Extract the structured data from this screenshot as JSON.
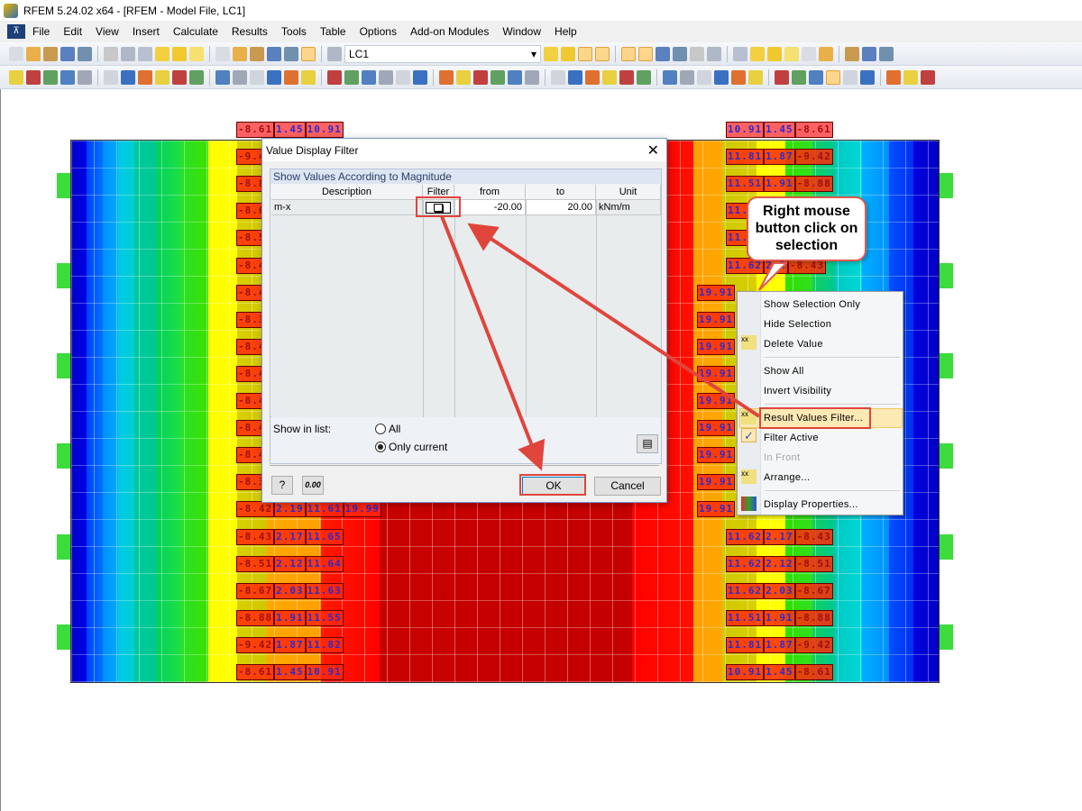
{
  "window": {
    "title": "RFEM 5.24.02 x64 - [RFEM - Model File, LC1]"
  },
  "menu": [
    "File",
    "Edit",
    "View",
    "Insert",
    "Calculate",
    "Results",
    "Tools",
    "Table",
    "Options",
    "Add-on Modules",
    "Window",
    "Help"
  ],
  "toolbar": {
    "load_case": "LC1"
  },
  "labels": {
    "left_top": [
      "-8.61",
      "1.45",
      "10.91"
    ],
    "left_rows": [
      [
        "-9.4"
      ],
      [
        "-8.8"
      ],
      [
        "-8.6"
      ],
      [
        "-8.5"
      ],
      [
        "-8.4"
      ],
      [
        "-8.4"
      ],
      [
        "-8.3"
      ],
      [
        "-8.4"
      ],
      [
        "-8.4"
      ],
      [
        "-8.4"
      ],
      [
        "-8.4"
      ],
      [
        "-8.4"
      ],
      [
        "-8.3"
      ],
      [
        "-8.42",
        "2.19",
        "11.61",
        "19.99"
      ],
      [
        "-8.43",
        "2.17",
        "11.65"
      ],
      [
        "-8.51",
        "2.12",
        "11.64"
      ],
      [
        "-8.67",
        "2.03",
        "11.63"
      ],
      [
        "-8.88",
        "1.91",
        "11.55"
      ],
      [
        "-9.42",
        "1.87",
        "11.82"
      ],
      [
        "-8.61",
        "1.45",
        "10.91"
      ]
    ],
    "right_top": [
      "10.91",
      "1.45",
      "-8.61"
    ],
    "right_rows": [
      [
        "11.81",
        "1.87",
        "-9.42"
      ],
      [
        "11.51",
        "1.91",
        "-8.88"
      ],
      [
        "11.6"
      ],
      [
        "11.6"
      ],
      [
        "11.62",
        "2.1",
        "-8.43"
      ],
      [
        "19.91"
      ],
      [
        "19.91"
      ],
      [
        "19.91"
      ],
      [
        "19.91"
      ],
      [
        "19.91"
      ],
      [
        "19.91"
      ],
      [
        "19.91"
      ],
      [
        "19.91"
      ],
      [
        "19.91"
      ],
      [
        "11.62",
        "2.17",
        "-8.43"
      ],
      [
        "11.62",
        "2.12",
        "-8.51"
      ],
      [
        "11.62",
        "2.03",
        "-8.67"
      ],
      [
        "11.51",
        "1.91",
        "-8.88"
      ],
      [
        "11.81",
        "1.87",
        "-9.42"
      ],
      [
        "10.91",
        "1.45",
        "-8.61"
      ]
    ]
  },
  "dialog": {
    "title": "Value Display Filter",
    "group_title": "Show Values According to Magnitude",
    "columns": [
      "Description",
      "Filter",
      "from",
      "to",
      "Unit"
    ],
    "row": {
      "description": "m-x",
      "filter": false,
      "from": "-20.00",
      "to": "20.00",
      "unit": "kNm/m"
    },
    "show_in_list_label": "Show in list:",
    "options": [
      "All",
      "Only current"
    ],
    "selected_option": "Only current",
    "ok": "OK",
    "cancel": "Cancel",
    "units_button": "0.00"
  },
  "context_menu": [
    {
      "label": "Show Selection Only"
    },
    {
      "label": "Hide Selection"
    },
    {
      "label": "Delete Value"
    },
    {
      "label": "Show All"
    },
    {
      "label": "Invert Visibility"
    },
    {
      "label": "Result Values Filter..."
    },
    {
      "label": "Filter Active",
      "checked": true
    },
    {
      "label": "In Front",
      "disabled": true
    },
    {
      "label": "Arrange..."
    },
    {
      "label": "Display Properties..."
    }
  ],
  "callout": {
    "text": "Right mouse button click on selection"
  },
  "colors": {
    "annotation": "#e0453c",
    "accent": "#1d3f7a"
  }
}
